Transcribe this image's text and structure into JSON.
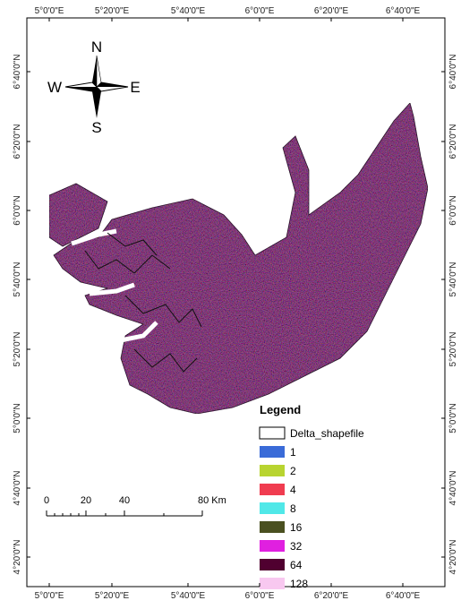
{
  "map": {
    "graticule": {
      "longitude": [
        "5°0'0\"E",
        "5°20'0\"E",
        "5°40'0\"E",
        "6°0'0\"E",
        "6°20'0\"E",
        "6°40'0\"E"
      ],
      "latitude": [
        "6°40'0\"N",
        "6°20'0\"N",
        "6°0'0\"N",
        "5°40'0\"N",
        "5°20'0\"N",
        "5°0'0\"N",
        "4°40'0\"N",
        "4°20'0\"N"
      ]
    },
    "compass": {
      "north": "N",
      "south": "S",
      "west": "W",
      "east": "E"
    },
    "legend": {
      "title": "Legend",
      "items": [
        {
          "label": "Delta_shapefile",
          "color": "#ffffff"
        },
        {
          "label": "1",
          "color": "#3a6bd8"
        },
        {
          "label": "2",
          "color": "#b8d430"
        },
        {
          "label": "4",
          "color": "#f03c50"
        },
        {
          "label": "8",
          "color": "#50e8e8"
        },
        {
          "label": "16",
          "color": "#4a5020"
        },
        {
          "label": "32",
          "color": "#e020e0"
        },
        {
          "label": "64",
          "color": "#500030"
        },
        {
          "label": "128",
          "color": "#f8c8f0"
        }
      ]
    },
    "scale_bar": {
      "labels": [
        "0",
        "20",
        "40",
        "80 Km"
      ]
    }
  }
}
